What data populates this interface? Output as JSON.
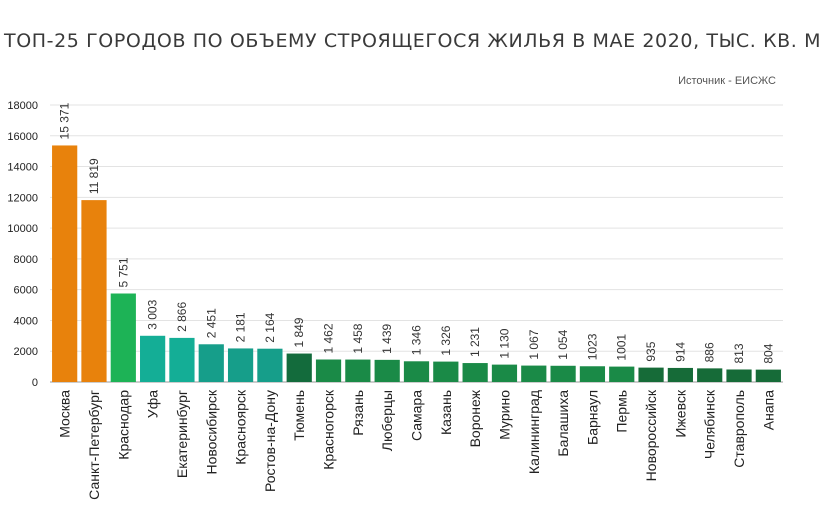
{
  "title": "ТОП-25 ГОРОДОВ ПО ОБЪЕМУ СТРОЯЩЕГОСЯ ЖИЛЬЯ В МАЕ 2020, ТЫС. КВ. М",
  "source": "Источник - ЕИСЖС",
  "chart_data": {
    "type": "bar",
    "title": "ТОП-25 ГОРОДОВ ПО ОБЪЕМУ СТРОЯЩЕГОСЯ ЖИЛЬЯ В МАЕ 2020, ТЫС. КВ. М",
    "xlabel": "",
    "ylabel": "",
    "ylim": [
      0,
      18000
    ],
    "yticks": [
      "0",
      "2000",
      "4000",
      "6000",
      "8000",
      "10000",
      "12000",
      "14000",
      "16000",
      "18000"
    ],
    "grid": true,
    "categories": [
      "Москва",
      "Санкт-Петербург",
      "Краснодар",
      "Уфа",
      "Екатеринбург",
      "Новосибирск",
      "Красноярск",
      "Ростов-на-Дону",
      "Тюмень",
      "Красногорск",
      "Рязань",
      "Люберцы",
      "Самара",
      "Казань",
      "Воронеж",
      "Мурино",
      "Калининград",
      "Балашиха",
      "Барнаул",
      "Пермь",
      "Новороссийск",
      "Ижевск",
      "Челябинск",
      "Ставрополь",
      "Анапа"
    ],
    "values": [
      15371,
      11819,
      5751,
      3003,
      2866,
      2451,
      2181,
      2164,
      1849,
      1462,
      1458,
      1439,
      1346,
      1326,
      1231,
      1130,
      1067,
      1054,
      1023,
      1001,
      935,
      914,
      886,
      813,
      804
    ],
    "value_labels": [
      "15 371",
      "11 819",
      "5 751",
      "3 003",
      "2 866",
      "2 451",
      "2 181",
      "2 164",
      "1 849",
      "1 462",
      "1 458",
      "1 439",
      "1 346",
      "1 326",
      "1 231",
      "1 130",
      "1 067",
      "1 054",
      "1023",
      "1001",
      "935",
      "914",
      "886",
      "813",
      "804"
    ],
    "colors": [
      "#e8820c",
      "#e8820c",
      "#1db356",
      "#14ae96",
      "#14ae96",
      "#169e8a",
      "#169e8a",
      "#169e8a",
      "#136b3c",
      "#1a8a47",
      "#1a8a47",
      "#1a8a47",
      "#1a8a47",
      "#1a8a47",
      "#1a8a47",
      "#1a8a47",
      "#1a8a47",
      "#1a8a47",
      "#1a8a47",
      "#1a8a47",
      "#166b38",
      "#166b38",
      "#166b38",
      "#166b38",
      "#166b38"
    ]
  }
}
